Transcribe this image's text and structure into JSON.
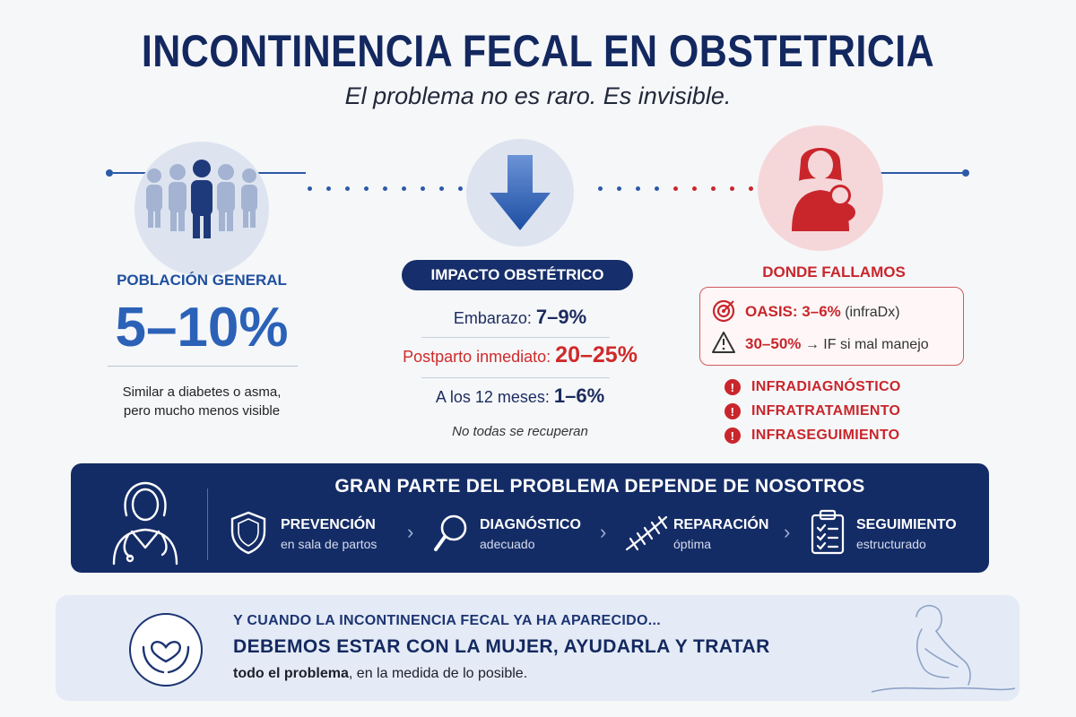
{
  "header": {
    "title": "INCONTINENCIA FECAL EN OBSTETRICIA",
    "subtitle": "El problema no es raro. Es invisible."
  },
  "population": {
    "label": "POBLACIÓN GENERAL",
    "value": "5–10%",
    "note_line1": "Similar a diabetes o asma,",
    "note_line2": "pero mucho menos visible"
  },
  "impact": {
    "label": "IMPACTO OBSTÉTRICO",
    "lines": [
      {
        "label": "Embarazo:",
        "value": "7–9%"
      },
      {
        "label": "Postparto inmediato:",
        "value": "20–25%"
      },
      {
        "label": "A los 12 meses:",
        "value": "1–6%"
      }
    ],
    "note": "No todas se recuperan"
  },
  "failures": {
    "label": "DONDE FALLAMOS",
    "oasis_label": "OASIS: 3–6%",
    "oasis_note": "(infraDx)",
    "mismanage_label": "30–50%",
    "mismanage_note": "→ IF si mal manejo",
    "items": [
      "INFRADIAGNÓSTICO",
      "INFRATRATAMIENTO",
      "INFRASEGUIMIENTO"
    ]
  },
  "band": {
    "title": "GRAN PARTE DEL PROBLEMA DEPENDE DE NOSOTROS",
    "steps": [
      {
        "title": "PREVENCIÓN",
        "sub": "en sala de partos",
        "icon": "shield-icon"
      },
      {
        "title": "DIAGNÓSTICO",
        "sub": "adecuado",
        "icon": "magnifier-icon"
      },
      {
        "title": "REPARACIÓN",
        "sub": "óptima",
        "icon": "suture-icon"
      },
      {
        "title": "SEGUIMIENTO",
        "sub": "estructurado",
        "icon": "clipboard-icon"
      }
    ]
  },
  "bottom": {
    "line1": "Y CUANDO LA INCONTINENCIA FECAL YA HA APARECIDO...",
    "line2": "DEBEMOS ESTAR CON LA MUJER, AYUDARLA Y TRATAR",
    "line3_bold": "todo el problema",
    "line3_rest": ", en la medida de lo posible."
  },
  "colors": {
    "navy": "#13285f",
    "blue": "#2b62b7",
    "red": "#c9262c"
  }
}
